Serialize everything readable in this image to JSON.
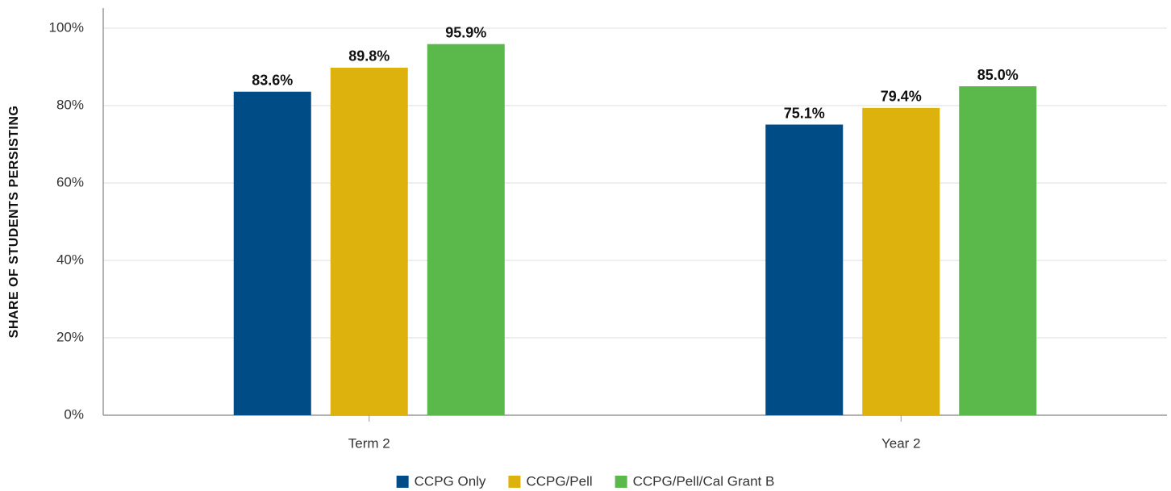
{
  "chart_data": {
    "type": "bar",
    "y_label": "SHARE OF STUDENTS PERSISTING",
    "categories": [
      "Term 2",
      "Year 2"
    ],
    "series": [
      {
        "name": "CCPG Only",
        "color": "#004c86",
        "values": [
          83.6,
          75.1
        ],
        "value_labels": [
          "83.6%",
          "75.1%"
        ]
      },
      {
        "name": "CCPG/Pell",
        "color": "#ddb20c",
        "values": [
          89.8,
          79.4
        ],
        "value_labels": [
          "89.8%",
          "79.4%"
        ]
      },
      {
        "name": "CCPG/Pell/Cal Grant B",
        "color": "#5ab94a",
        "values": [
          95.9,
          85.0
        ],
        "value_labels": [
          "95.9%",
          "85.0%"
        ]
      }
    ],
    "ylim": [
      0,
      100
    ],
    "yticks": [
      {
        "value": 0,
        "label": "0%"
      },
      {
        "value": 20,
        "label": "20%"
      },
      {
        "value": 40,
        "label": "40%"
      },
      {
        "value": 60,
        "label": "60%"
      },
      {
        "value": 80,
        "label": "80%"
      },
      {
        "value": 100,
        "label": "100%"
      }
    ],
    "grid": true,
    "legend": "bottom"
  }
}
